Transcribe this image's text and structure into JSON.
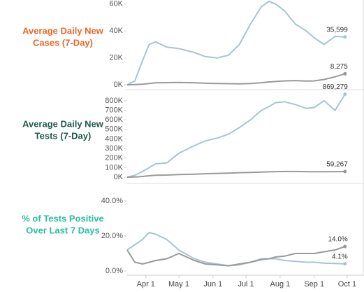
{
  "chart_data": [
    {
      "type": "line",
      "title": [
        "Average Daily New",
        "Cases (7-Day)"
      ],
      "title_color": "#e8682a",
      "x": [
        "Mar 15",
        "Mar 22",
        "Mar 29",
        "Apr 4",
        "Apr 10",
        "Apr 20",
        "May 1",
        "May 15",
        "May 25",
        "Jun 5",
        "Jun 15",
        "Jun 25",
        "Jul 5",
        "Jul 15",
        "Jul 22",
        "Jul 28",
        "Aug 5",
        "Aug 15",
        "Aug 25",
        "Sep 1",
        "Sep 10",
        "Sep 20",
        "Sep 29"
      ],
      "xlim": [
        "Mar 15",
        "Oct 15"
      ],
      "ylim": [
        -3000,
        63000
      ],
      "yticks": [
        {
          "value": 0,
          "label": "0K"
        },
        {
          "value": 20000,
          "label": "20K"
        },
        {
          "value": 40000,
          "label": "40K"
        },
        {
          "value": 60000,
          "label": "60K"
        }
      ],
      "series": [
        {
          "color": "#a7c6cf",
          "values": [
            0,
            3000,
            18000,
            30000,
            32000,
            28000,
            27000,
            24000,
            21000,
            20000,
            22000,
            30000,
            45000,
            58000,
            62000,
            60000,
            55000,
            45000,
            40000,
            35000,
            30000,
            36000,
            35599
          ],
          "value_labels": [
            null,
            null,
            null,
            null,
            null,
            null,
            null,
            null,
            null,
            null,
            null,
            null,
            null,
            null,
            null,
            null,
            null,
            null,
            null,
            null,
            null,
            null,
            "35,599"
          ]
        },
        {
          "color": "#9a9a9a",
          "values": [
            0,
            200,
            500,
            1000,
            1500,
            1700,
            1800,
            1500,
            1200,
            1000,
            900,
            800,
            1000,
            1600,
            2200,
            2500,
            3000,
            3200,
            2800,
            3000,
            4000,
            6000,
            8275
          ],
          "value_labels": [
            null,
            null,
            null,
            null,
            null,
            null,
            null,
            null,
            null,
            null,
            null,
            null,
            null,
            null,
            null,
            null,
            null,
            null,
            null,
            null,
            null,
            null,
            "8,275"
          ]
        }
      ]
    },
    {
      "type": "line",
      "title": [
        "Average Daily New",
        "Tests (7-Day)"
      ],
      "title_color": "#1f5b4c",
      "x": [
        "Mar 15",
        "Mar 22",
        "Mar 29",
        "Apr 4",
        "Apr 10",
        "Apr 20",
        "May 1",
        "May 15",
        "May 25",
        "Jun 5",
        "Jun 15",
        "Jun 25",
        "Jul 5",
        "Jul 15",
        "Jul 22",
        "Jul 28",
        "Aug 5",
        "Aug 15",
        "Aug 25",
        "Sep 1",
        "Sep 10",
        "Sep 20",
        "Sep 29"
      ],
      "xlim": [
        "Mar 15",
        "Oct 15"
      ],
      "ylim": [
        -40000,
        880000
      ],
      "yticks": [
        {
          "value": 0,
          "label": "0K"
        },
        {
          "value": 100000,
          "label": "100K"
        },
        {
          "value": 200000,
          "label": "200K"
        },
        {
          "value": 300000,
          "label": "300K"
        },
        {
          "value": 400000,
          "label": "400K"
        },
        {
          "value": 500000,
          "label": "500K"
        },
        {
          "value": 600000,
          "label": "600K"
        },
        {
          "value": 700000,
          "label": "700K"
        },
        {
          "value": 800000,
          "label": "800K"
        }
      ],
      "series": [
        {
          "color": "#a7c6cf",
          "values": [
            0,
            20000,
            60000,
            100000,
            140000,
            150000,
            250000,
            330000,
            380000,
            410000,
            450000,
            520000,
            600000,
            700000,
            740000,
            780000,
            790000,
            760000,
            720000,
            730000,
            800000,
            700000,
            869279
          ],
          "value_labels": [
            null,
            null,
            null,
            null,
            null,
            null,
            null,
            null,
            null,
            null,
            null,
            null,
            null,
            null,
            null,
            null,
            null,
            null,
            null,
            null,
            null,
            null,
            "869,279"
          ]
        },
        {
          "color": "#9a9a9a",
          "values": [
            0,
            2000,
            8000,
            15000,
            20000,
            22000,
            28000,
            32000,
            36000,
            40000,
            43000,
            47000,
            50000,
            53000,
            56000,
            58000,
            60000,
            60000,
            58000,
            57000,
            57000,
            58000,
            59267
          ],
          "value_labels": [
            null,
            null,
            null,
            null,
            null,
            null,
            null,
            null,
            null,
            null,
            null,
            null,
            null,
            null,
            null,
            null,
            null,
            null,
            null,
            null,
            null,
            null,
            "59,267"
          ]
        }
      ]
    },
    {
      "type": "line",
      "title": [
        "% of Tests Positive",
        "Over Last 7 Days"
      ],
      "title_color": "#2bbfa0",
      "x": [
        "Mar 15",
        "Mar 22",
        "Mar 29",
        "Apr 4",
        "Apr 10",
        "Apr 20",
        "May 1",
        "May 15",
        "May 25",
        "Jun 5",
        "Jun 15",
        "Jun 25",
        "Jul 5",
        "Jul 15",
        "Jul 22",
        "Jul 28",
        "Aug 5",
        "Aug 15",
        "Aug 25",
        "Sep 1",
        "Sep 10",
        "Sep 20",
        "Sep 29"
      ],
      "xlim": [
        "Mar 15",
        "Oct 15"
      ],
      "ylim": [
        -2,
        46
      ],
      "yticks": [
        {
          "value": 0,
          "label": "0.0%"
        },
        {
          "value": 20,
          "label": "20.0%"
        },
        {
          "value": 40,
          "label": "40.0%"
        }
      ],
      "xticks": [
        "Apr 1",
        "May 1",
        "Jun 1",
        "Jul 1",
        "Aug 1",
        "Sep 1",
        "Oct 1"
      ],
      "series": [
        {
          "color": "#a7c6cf",
          "values": [
            12,
            15,
            18,
            22,
            21,
            18,
            12,
            7,
            5,
            4,
            3,
            3.5,
            5,
            7,
            7,
            7,
            6,
            5.5,
            5,
            5,
            4.5,
            4.3,
            4.1
          ],
          "value_labels": [
            null,
            null,
            null,
            null,
            null,
            null,
            null,
            null,
            null,
            null,
            null,
            null,
            null,
            null,
            null,
            null,
            null,
            null,
            null,
            null,
            null,
            null,
            "4.1%"
          ]
        },
        {
          "color": "#9a9a9a",
          "values": [
            12,
            5,
            4,
            5,
            6,
            7,
            10,
            6,
            4,
            3.5,
            3,
            4,
            5,
            6.5,
            7,
            8,
            8.5,
            10,
            10,
            10,
            11,
            12,
            14
          ],
          "value_labels": [
            null,
            null,
            null,
            null,
            null,
            null,
            null,
            null,
            null,
            null,
            null,
            null,
            null,
            null,
            null,
            null,
            null,
            null,
            null,
            null,
            null,
            null,
            "14.0%"
          ]
        }
      ]
    }
  ]
}
